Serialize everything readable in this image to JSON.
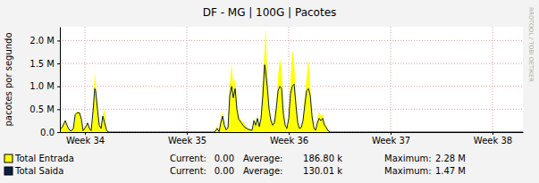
{
  "chart_data": {
    "type": "area",
    "title": "DF - MG | 100G | Pacotes",
    "y_label": "pacotes por segundo",
    "x": [
      33.754,
      33.781,
      33.807,
      33.833,
      33.86,
      33.886,
      33.904,
      33.921,
      33.947,
      33.965,
      33.982,
      34.009,
      34.026,
      34.044,
      34.061,
      34.079,
      34.096,
      34.105,
      34.123,
      34.14,
      34.158,
      34.175,
      34.193,
      34.211,
      34.228,
      35.272,
      35.298,
      35.316,
      35.333,
      35.351,
      35.368,
      35.386,
      35.404,
      35.421,
      35.439,
      35.456,
      35.474,
      35.491,
      35.509,
      35.535,
      35.561,
      35.588,
      35.614,
      35.64,
      35.658,
      35.675,
      35.693,
      35.711,
      35.728,
      35.746,
      35.763,
      35.772,
      35.789,
      35.807,
      35.825,
      35.842,
      35.86,
      35.877,
      35.895,
      35.912,
      35.93,
      35.947,
      35.965,
      35.982,
      36.0,
      36.018,
      36.035,
      36.053,
      36.07,
      36.088,
      36.105,
      36.123,
      36.14,
      36.158,
      36.175,
      36.193,
      36.211,
      36.228,
      36.246,
      36.263,
      36.281,
      36.298,
      36.316,
      36.333,
      36.351,
      36.368,
      36.386,
      36.404,
      38.298
    ],
    "series": [
      {
        "name": "Total Entrada",
        "type": "area",
        "color": "#ffff00",
        "values": [
          50000,
          150000,
          280000,
          120000,
          30000,
          100000,
          400000,
          450000,
          450000,
          300000,
          50000,
          150000,
          220000,
          100000,
          50000,
          500000,
          1300000,
          1100000,
          600000,
          200000,
          100000,
          400000,
          500000,
          100000,
          0,
          0,
          150000,
          20000,
          300000,
          450000,
          200000,
          50000,
          150000,
          1000000,
          1500000,
          1000000,
          1200000,
          700000,
          350000,
          250000,
          200000,
          100000,
          80000,
          50000,
          300000,
          200000,
          350000,
          150000,
          400000,
          1200000,
          1800000,
          2280000,
          1300000,
          600000,
          300000,
          200000,
          300000,
          600000,
          1200000,
          1600000,
          1400000,
          600000,
          200000,
          100000,
          400000,
          1200000,
          1800000,
          1500000,
          800000,
          300000,
          100000,
          150000,
          300000,
          800000,
          1200000,
          1600000,
          1000000,
          500000,
          150000,
          50000,
          300000,
          450000,
          350000,
          400000,
          200000,
          150000,
          50000,
          0,
          0
        ]
      },
      {
        "name": "Total Saida",
        "type": "line",
        "color": "#0b1f44",
        "values": [
          50000,
          120000,
          250000,
          100000,
          20000,
          80000,
          380000,
          420000,
          420000,
          280000,
          30000,
          120000,
          200000,
          80000,
          30000,
          450000,
          950000,
          900000,
          500000,
          150000,
          80000,
          350000,
          200000,
          50000,
          0,
          0,
          80000,
          10000,
          200000,
          350000,
          150000,
          50000,
          100000,
          800000,
          1000000,
          750000,
          950000,
          500000,
          280000,
          200000,
          120000,
          80000,
          50000,
          40000,
          250000,
          150000,
          300000,
          120000,
          300000,
          800000,
          1470000,
          1350000,
          1000000,
          500000,
          250000,
          150000,
          200000,
          500000,
          900000,
          1000000,
          950000,
          400000,
          150000,
          80000,
          300000,
          850000,
          1000000,
          1050000,
          600000,
          200000,
          80000,
          100000,
          250000,
          600000,
          900000,
          950000,
          800000,
          350000,
          100000,
          40000,
          200000,
          300000,
          250000,
          300000,
          150000,
          100000,
          30000,
          0,
          0
        ]
      }
    ],
    "xlim": [
      33.754,
      38.298
    ],
    "xticks": [
      {
        "value": 34,
        "label": "Week 34"
      },
      {
        "value": 35,
        "label": "Week 35"
      },
      {
        "value": 36,
        "label": "Week 36"
      },
      {
        "value": 37,
        "label": "Week 37"
      },
      {
        "value": 38,
        "label": "Week 38"
      }
    ],
    "ylim": [
      0,
      2300000
    ],
    "yticks": [
      {
        "value": 0,
        "label": "0.0"
      },
      {
        "value": 500000,
        "label": "0.5 M"
      },
      {
        "value": 1000000,
        "label": "1.0 M"
      },
      {
        "value": 1500000,
        "label": "1.5 M"
      },
      {
        "value": 2000000,
        "label": "2.0 M"
      }
    ],
    "grid": true,
    "legend": "bottom",
    "annotations": [
      [
        "Current:",
        "0.00",
        "Average:",
        "186.80 k",
        "Maximum:",
        "2.28 M"
      ],
      [
        "Current:",
        "0.00",
        "Average:",
        "130.01 k",
        "Maximum:",
        "1.47 M"
      ],
      [
        "RRDTOOL / TOBI OETIKER"
      ]
    ]
  }
}
